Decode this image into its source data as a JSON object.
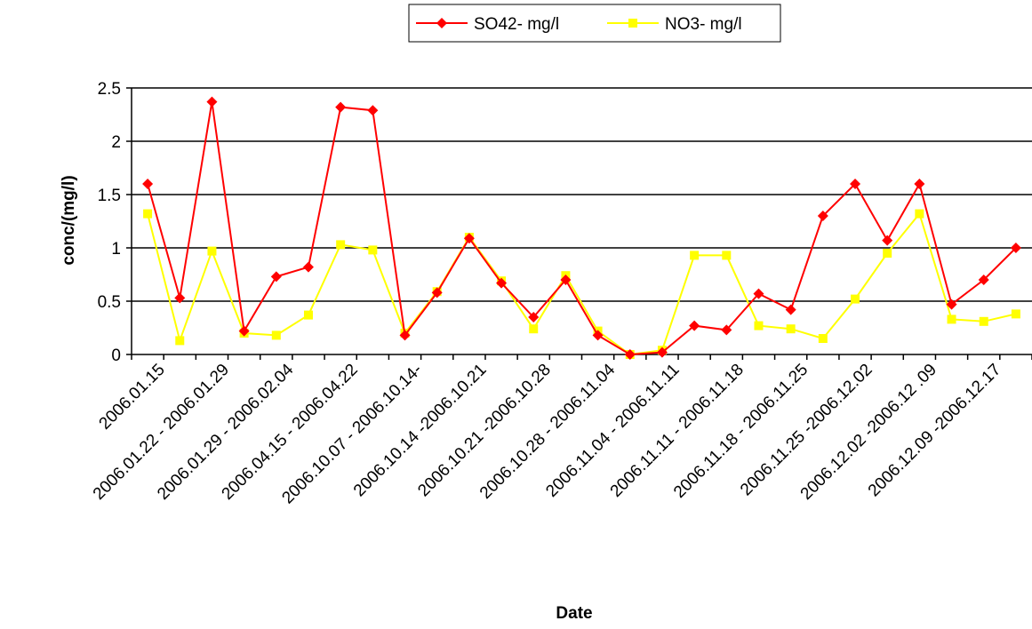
{
  "chart_data": {
    "type": "line",
    "title": "",
    "xlabel": "Date",
    "ylabel": "conc/(mg/l)",
    "ylim": [
      0,
      2.5
    ],
    "yticks": [
      0,
      0.5,
      1,
      1.5,
      2,
      2.5
    ],
    "ytick_labels": [
      "0",
      "0.5",
      "1",
      "1.5",
      "2",
      "2.5"
    ],
    "grid": true,
    "legend_position": "top",
    "categories": [
      "2006.01.15",
      "",
      "2006.01.22 - 2006.01.29",
      "",
      "2006.01.29 - 2006.02.04",
      "",
      "2006.04.15 - 2006.04.22",
      "",
      "2006.10.07 - 2006.10.14-",
      "",
      "2006.10.14 -2006.10.21",
      "",
      "2006.10.21 -2006.10.28",
      "",
      "2006.10.28 - 2006.11.04",
      "",
      "2006.11.04 - 2006.11.11",
      "",
      "2006.11.11 - 2006.11.18",
      "",
      "2006.11.18 - 2006.11.25",
      "",
      "2006.11.25 -2006.12.02",
      "",
      "2006.12.02 -2006.12 .09",
      "",
      "2006.12.09 -2006.12.17",
      ""
    ],
    "series": [
      {
        "name": "SO42- mg/l",
        "color": "#ff0000",
        "marker": "diamond",
        "values": [
          1.6,
          0.53,
          2.37,
          0.22,
          0.73,
          0.82,
          2.32,
          2.29,
          0.18,
          0.58,
          1.09,
          0.67,
          0.35,
          0.7,
          0.18,
          0.0,
          0.02,
          0.27,
          0.23,
          0.57,
          0.42,
          1.3,
          1.6,
          1.07,
          1.6,
          0.47,
          0.7,
          1.0
        ]
      },
      {
        "name": "NO3- mg/l",
        "color": "#ffff00",
        "marker": "square",
        "values": [
          1.32,
          0.13,
          0.97,
          0.2,
          0.18,
          0.37,
          1.03,
          0.98,
          0.2,
          0.59,
          1.1,
          0.69,
          0.24,
          0.74,
          0.22,
          0.0,
          0.04,
          0.93,
          0.93,
          0.27,
          0.24,
          0.15,
          0.52,
          0.95,
          1.32,
          0.33,
          0.31,
          0.38
        ]
      }
    ]
  }
}
